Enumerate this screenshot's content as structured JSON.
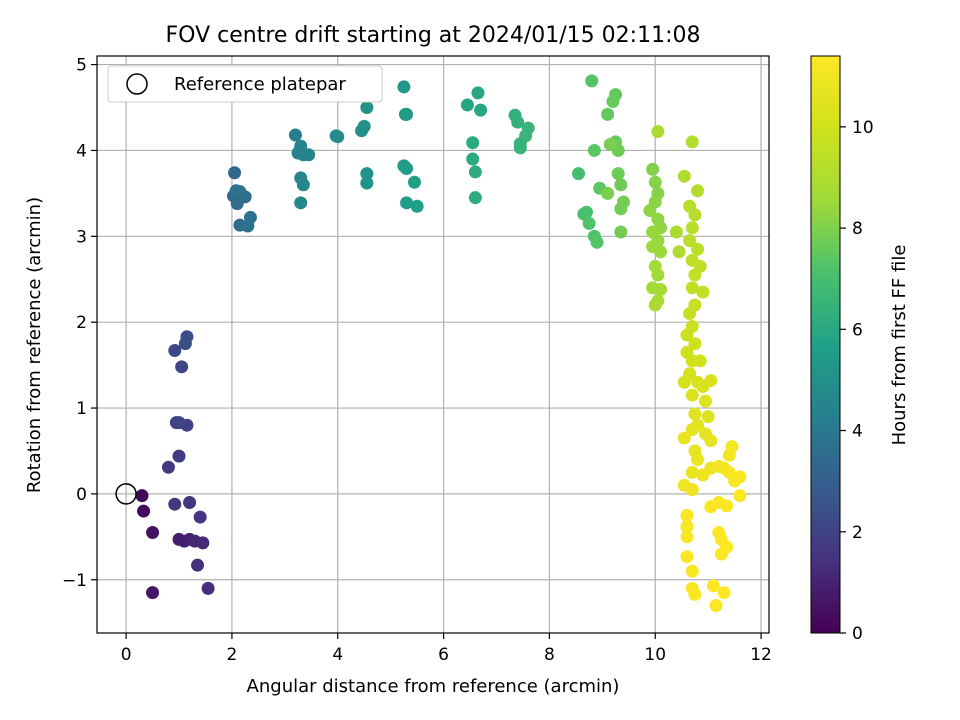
{
  "chart_data": {
    "type": "scatter",
    "title": "FOV centre drift starting at 2024/01/15 02:11:08",
    "xlabel": "Angular distance from reference (arcmin)",
    "ylabel": "Rotation from reference (arcmin)",
    "xlim": [
      -0.55,
      12.15
    ],
    "ylim": [
      -1.62,
      5.1
    ],
    "xticks": [
      0,
      2,
      4,
      6,
      8,
      10,
      12
    ],
    "yticks": [
      -1,
      0,
      1,
      2,
      3,
      4,
      5
    ],
    "grid": true,
    "colormap": "viridis",
    "legend": {
      "position": "top-left",
      "entries": [
        "Reference platepar"
      ]
    },
    "reference_point": {
      "x": 0,
      "y": 0
    },
    "colorbar": {
      "label": "Hours from first FF file",
      "range": [
        0,
        11.4
      ],
      "ticks": [
        0,
        2,
        4,
        6,
        8,
        10
      ]
    },
    "points": [
      [
        0.3,
        -0.02,
        0.2
      ],
      [
        0.33,
        -0.2,
        0.3
      ],
      [
        0.5,
        -0.45,
        0.5
      ],
      [
        0.5,
        -1.15,
        0.6
      ],
      [
        1.0,
        -0.53,
        0.8
      ],
      [
        1.1,
        -0.55,
        0.9
      ],
      [
        1.2,
        -0.53,
        1.0
      ],
      [
        1.3,
        -0.55,
        1.1
      ],
      [
        1.45,
        -0.57,
        1.2
      ],
      [
        1.55,
        -1.1,
        1.3
      ],
      [
        1.35,
        -0.83,
        1.4
      ],
      [
        1.4,
        -0.27,
        1.5
      ],
      [
        1.2,
        -0.1,
        1.5
      ],
      [
        0.92,
        -0.12,
        1.6
      ],
      [
        0.8,
        0.31,
        1.7
      ],
      [
        1.0,
        0.44,
        1.8
      ],
      [
        1.15,
        0.8,
        1.9
      ],
      [
        0.95,
        0.83,
        1.9
      ],
      [
        1.0,
        0.83,
        2.0
      ],
      [
        1.05,
        1.48,
        2.1
      ],
      [
        0.92,
        1.67,
        2.2
      ],
      [
        1.12,
        1.75,
        2.3
      ],
      [
        1.15,
        1.83,
        2.4
      ],
      [
        2.05,
        3.74,
        3.3
      ],
      [
        2.03,
        3.47,
        3.4
      ],
      [
        2.1,
        3.38,
        3.5
      ],
      [
        2.15,
        3.13,
        3.5
      ],
      [
        2.25,
        3.46,
        3.6
      ],
      [
        2.3,
        3.12,
        3.7
      ],
      [
        2.35,
        3.22,
        3.7
      ],
      [
        2.08,
        3.53,
        3.8
      ],
      [
        2.15,
        3.52,
        3.8
      ],
      [
        3.2,
        4.18,
        4.2
      ],
      [
        3.25,
        3.97,
        4.3
      ],
      [
        3.3,
        4.05,
        4.4
      ],
      [
        3.35,
        3.95,
        4.4
      ],
      [
        3.45,
        3.95,
        4.5
      ],
      [
        3.3,
        3.68,
        4.5
      ],
      [
        3.35,
        3.6,
        4.6
      ],
      [
        3.3,
        3.39,
        4.6
      ],
      [
        3.97,
        4.17,
        4.7
      ],
      [
        4.0,
        4.16,
        4.8
      ],
      [
        4.45,
        4.23,
        4.9
      ],
      [
        4.5,
        4.28,
        5.0
      ],
      [
        4.55,
        4.5,
        5.0
      ],
      [
        4.55,
        3.73,
        5.1
      ],
      [
        4.55,
        3.62,
        5.1
      ],
      [
        5.25,
        4.74,
        5.3
      ],
      [
        5.28,
        4.42,
        5.3
      ],
      [
        5.3,
        4.42,
        5.4
      ],
      [
        5.25,
        3.82,
        5.4
      ],
      [
        5.3,
        3.79,
        5.5
      ],
      [
        5.3,
        3.39,
        5.5
      ],
      [
        5.45,
        3.63,
        5.6
      ],
      [
        5.5,
        3.35,
        5.6
      ],
      [
        6.45,
        4.53,
        5.9
      ],
      [
        6.65,
        4.67,
        6.0
      ],
      [
        6.7,
        4.47,
        6.0
      ],
      [
        6.55,
        4.09,
        6.1
      ],
      [
        6.55,
        3.9,
        6.1
      ],
      [
        6.6,
        3.75,
        6.2
      ],
      [
        6.6,
        3.45,
        6.2
      ],
      [
        7.35,
        4.41,
        6.4
      ],
      [
        7.4,
        4.33,
        6.4
      ],
      [
        7.45,
        4.08,
        6.5
      ],
      [
        7.45,
        4.03,
        6.5
      ],
      [
        7.6,
        4.26,
        6.6
      ],
      [
        7.55,
        4.17,
        6.6
      ],
      [
        8.55,
        3.73,
        7.0
      ],
      [
        8.65,
        3.26,
        7.1
      ],
      [
        8.7,
        3.28,
        7.1
      ],
      [
        8.75,
        3.15,
        7.2
      ],
      [
        8.85,
        3.0,
        7.2
      ],
      [
        8.9,
        2.93,
        7.3
      ],
      [
        8.8,
        4.81,
        7.3
      ],
      [
        8.85,
        4.0,
        7.4
      ],
      [
        8.95,
        3.56,
        7.4
      ],
      [
        9.1,
        4.42,
        7.5
      ],
      [
        9.25,
        4.65,
        7.5
      ],
      [
        9.2,
        4.57,
        7.6
      ],
      [
        9.25,
        4.1,
        7.6
      ],
      [
        9.3,
        4.0,
        7.7
      ],
      [
        9.3,
        3.73,
        7.7
      ],
      [
        9.35,
        3.6,
        7.7
      ],
      [
        9.4,
        3.4,
        7.8
      ],
      [
        9.35,
        3.32,
        7.8
      ],
      [
        9.35,
        3.05,
        7.8
      ],
      [
        9.1,
        3.5,
        7.9
      ],
      [
        9.15,
        4.07,
        7.9
      ],
      [
        9.95,
        3.78,
        8.0
      ],
      [
        10.0,
        3.63,
        8.1
      ],
      [
        10.05,
        3.5,
        8.1
      ],
      [
        10.0,
        3.4,
        8.2
      ],
      [
        9.9,
        3.3,
        8.2
      ],
      [
        10.05,
        3.2,
        8.3
      ],
      [
        10.1,
        3.1,
        8.3
      ],
      [
        9.95,
        3.05,
        8.4
      ],
      [
        10.05,
        2.95,
        8.4
      ],
      [
        9.95,
        2.88,
        8.5
      ],
      [
        10.1,
        2.82,
        8.5
      ],
      [
        10.0,
        2.65,
        8.6
      ],
      [
        10.05,
        2.55,
        8.6
      ],
      [
        9.95,
        2.4,
        8.7
      ],
      [
        10.1,
        2.38,
        8.7
      ],
      [
        10.05,
        2.25,
        8.8
      ],
      [
        10.0,
        2.2,
        8.8
      ],
      [
        10.05,
        4.22,
        8.9
      ],
      [
        10.4,
        3.05,
        8.9
      ],
      [
        10.45,
        2.82,
        9.0
      ],
      [
        10.55,
        3.7,
        9.0
      ],
      [
        10.7,
        4.1,
        9.1
      ],
      [
        10.8,
        3.53,
        9.1
      ],
      [
        10.65,
        3.35,
        9.2
      ],
      [
        10.75,
        3.25,
        9.2
      ],
      [
        10.7,
        3.1,
        9.3
      ],
      [
        10.65,
        2.95,
        9.3
      ],
      [
        10.8,
        2.85,
        9.4
      ],
      [
        10.7,
        2.72,
        9.4
      ],
      [
        10.85,
        2.65,
        9.5
      ],
      [
        10.75,
        2.55,
        9.5
      ],
      [
        10.7,
        2.4,
        9.6
      ],
      [
        10.9,
        2.35,
        9.6
      ],
      [
        10.75,
        2.2,
        9.7
      ],
      [
        10.65,
        2.1,
        9.7
      ],
      [
        10.7,
        1.95,
        9.8
      ],
      [
        10.6,
        1.85,
        9.8
      ],
      [
        10.75,
        1.75,
        9.9
      ],
      [
        10.6,
        1.65,
        9.9
      ],
      [
        10.7,
        1.55,
        10.0
      ],
      [
        10.85,
        1.55,
        10.0
      ],
      [
        10.65,
        1.4,
        10.1
      ],
      [
        10.55,
        1.3,
        10.1
      ],
      [
        10.8,
        1.3,
        10.2
      ],
      [
        10.9,
        1.25,
        10.2
      ],
      [
        11.05,
        1.32,
        10.3
      ],
      [
        10.7,
        1.15,
        10.3
      ],
      [
        10.95,
        1.08,
        10.4
      ],
      [
        11.0,
        0.9,
        10.4
      ],
      [
        10.75,
        0.93,
        10.5
      ],
      [
        10.8,
        0.8,
        10.5
      ],
      [
        10.7,
        0.75,
        10.6
      ],
      [
        10.95,
        0.7,
        10.6
      ],
      [
        11.05,
        0.62,
        10.6
      ],
      [
        10.55,
        0.65,
        10.7
      ],
      [
        10.75,
        0.5,
        10.7
      ],
      [
        10.8,
        0.4,
        10.8
      ],
      [
        10.7,
        0.25,
        10.8
      ],
      [
        10.9,
        0.22,
        10.9
      ],
      [
        11.05,
        0.3,
        10.9
      ],
      [
        10.55,
        0.1,
        11.0
      ],
      [
        10.7,
        0.05,
        11.0
      ],
      [
        11.2,
        0.32,
        11.0
      ],
      [
        11.3,
        0.3,
        11.1
      ],
      [
        11.45,
        0.55,
        11.1
      ],
      [
        11.4,
        0.45,
        11.1
      ],
      [
        11.4,
        0.25,
        11.2
      ],
      [
        11.5,
        0.15,
        11.2
      ],
      [
        11.6,
        0.2,
        11.3
      ],
      [
        11.6,
        -0.02,
        11.3
      ],
      [
        11.2,
        -0.1,
        11.3
      ],
      [
        11.35,
        -0.14,
        11.3
      ],
      [
        11.05,
        -0.15,
        11.3
      ],
      [
        10.6,
        -0.25,
        11.3
      ],
      [
        10.6,
        -0.38,
        11.3
      ],
      [
        10.6,
        -0.5,
        11.3
      ],
      [
        10.6,
        -0.73,
        11.3
      ],
      [
        10.7,
        -0.9,
        11.3
      ],
      [
        10.7,
        -1.1,
        11.3
      ],
      [
        10.75,
        -1.17,
        11.3
      ],
      [
        11.2,
        -0.45,
        11.4
      ],
      [
        11.25,
        -0.53,
        11.4
      ],
      [
        11.35,
        -0.62,
        11.4
      ],
      [
        11.25,
        -0.7,
        11.4
      ],
      [
        11.1,
        -1.07,
        11.4
      ],
      [
        11.15,
        -1.3,
        11.4
      ],
      [
        11.3,
        -1.15,
        11.4
      ]
    ]
  }
}
